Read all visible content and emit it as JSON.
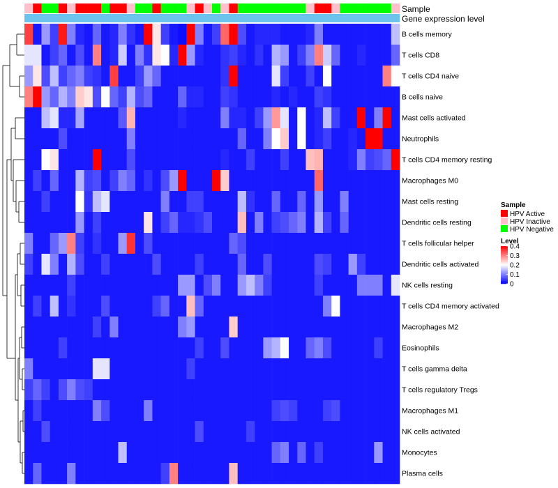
{
  "chart_data": {
    "type": "heatmap",
    "title": "",
    "xlabel": "",
    "ylabel": "",
    "row_labels": [
      "B cells memory",
      "T cells CD8",
      "T cells CD4 naive",
      "B cells naive",
      "Mast cells activated",
      "Neutrophils",
      "T cells CD4 memory resting",
      "Macrophages M0",
      "Mast cells resting",
      "Dendritic cells resting",
      "T cells follicular helper",
      "Dendritic cells activated",
      "NK cells resting",
      "T cells CD4 memory activated",
      "Macrophages M2",
      "Eosinophils",
      "T cells gamma delta",
      "T cells regulatory  Tregs",
      "Macrophages M1",
      "NK cells activated",
      "Monocytes",
      "Plasma cells"
    ],
    "annotation_tracks": [
      "Sample",
      "Gene expression level"
    ],
    "sample_groups": [
      "HPV Inactive",
      "HPV Active",
      "HPV Negative",
      "HPV Negative",
      "HPV Active",
      "HPV Inactive",
      "HPV Active",
      "HPV Active",
      "HPV Active",
      "HPV Negative",
      "HPV Active",
      "HPV Active",
      "HPV Inactive",
      "HPV Negative",
      "HPV Negative",
      "HPV Active",
      "HPV Negative",
      "HPV Negative",
      "HPV Negative",
      "HPV Inactive",
      "HPV Active",
      "HPV Inactive",
      "HPV Negative",
      "HPV Inactive",
      "HPV Active",
      "HPV Negative",
      "HPV Negative",
      "HPV Negative",
      "HPV Negative",
      "HPV Negative",
      "HPV Negative",
      "HPV Negative",
      "HPV Negative",
      "HPV Inactive",
      "HPV Active",
      "HPV Active",
      "HPV Inactive",
      "HPV Negative",
      "HPV Negative",
      "HPV Negative",
      "HPV Negative",
      "HPV Negative",
      "HPV Negative",
      "HPV Inactive"
    ],
    "values": [
      [
        0.35,
        0.02,
        0.12,
        0.05,
        0.38,
        0.1,
        0.03,
        0.02,
        0.08,
        0.02,
        0.03,
        0.1,
        0.04,
        0.02,
        0.4,
        0.22,
        0.05,
        0.02,
        0.01,
        0.44,
        0.1,
        0.02,
        0.05,
        0.32,
        0.42,
        0.06,
        0.02,
        0.03,
        0.03,
        0.03,
        0.02,
        0.02,
        0.02,
        0.03,
        0.1,
        0.02,
        0.02,
        0.02,
        0.02,
        0.02,
        0.02,
        0.02,
        0.02,
        0.15
      ],
      [
        0.18,
        0.18,
        0.02,
        0.05,
        0.08,
        0.02,
        0.06,
        0.02,
        0.3,
        0.02,
        0.03,
        0.16,
        0.02,
        0.1,
        0.04,
        0.22,
        0.2,
        0.03,
        0.42,
        0.12,
        0.03,
        0.02,
        0.02,
        0.04,
        0.05,
        0.03,
        0.02,
        0.04,
        0.02,
        0.14,
        0.12,
        0.02,
        0.05,
        0.1,
        0.3,
        0.16,
        0.08,
        0.02,
        0.02,
        0.03,
        0.02,
        0.02,
        0.02,
        0.08
      ],
      [
        0.12,
        0.22,
        0.06,
        0.15,
        0.05,
        0.08,
        0.1,
        0.05,
        0.04,
        0.02,
        0.35,
        0.02,
        0.02,
        0.05,
        0.12,
        0.08,
        0.02,
        0.02,
        0.02,
        0.02,
        0.02,
        0.02,
        0.02,
        0.04,
        0.45,
        0.02,
        0.02,
        0.02,
        0.02,
        0.18,
        0.05,
        0.02,
        0.02,
        0.05,
        0.02,
        0.2,
        0.02,
        0.02,
        0.02,
        0.02,
        0.02,
        0.02,
        0.3,
        0.2
      ],
      [
        0.3,
        0.4,
        0.12,
        0.08,
        0.14,
        0.1,
        0.24,
        0.22,
        0.06,
        0.2,
        0.08,
        0.05,
        0.14,
        0.06,
        0.08,
        0.02,
        0.02,
        0.02,
        0.08,
        0.03,
        0.03,
        0.02,
        0.02,
        0.05,
        0.04,
        0.02,
        0.02,
        0.02,
        0.02,
        0.03,
        0.02,
        0.03,
        0.02,
        0.02,
        0.05,
        0.04,
        0.02,
        0.02,
        0.02,
        0.02,
        0.02,
        0.02,
        0.02,
        0.02
      ],
      [
        0.02,
        0.02,
        0.15,
        0.18,
        0.03,
        0.03,
        0.13,
        0.02,
        0.02,
        0.02,
        0.02,
        0.07,
        0.26,
        0.02,
        0.02,
        0.02,
        0.02,
        0.02,
        0.03,
        0.02,
        0.02,
        0.02,
        0.02,
        0.1,
        0.03,
        0.03,
        0.02,
        0.05,
        0.12,
        0.28,
        0.18,
        0.02,
        0.2,
        0.02,
        0.03,
        0.15,
        0.05,
        0.02,
        0.02,
        0.5,
        0.02,
        0.1,
        0.48,
        0.02
      ],
      [
        0.02,
        0.02,
        0.02,
        0.02,
        0.06,
        0.02,
        0.02,
        0.02,
        0.02,
        0.02,
        0.02,
        0.02,
        0.1,
        0.02,
        0.02,
        0.02,
        0.02,
        0.02,
        0.02,
        0.02,
        0.02,
        0.02,
        0.02,
        0.02,
        0.02,
        0.08,
        0.02,
        0.02,
        0.1,
        0.2,
        0.24,
        0.02,
        0.2,
        0.02,
        0.03,
        0.05,
        0.02,
        0.02,
        0.03,
        0.02,
        0.42,
        0.45,
        0.02,
        0.02
      ],
      [
        0.02,
        0.02,
        0.2,
        0.22,
        0.02,
        0.02,
        0.02,
        0.02,
        0.4,
        0.02,
        0.02,
        0.02,
        0.06,
        0.02,
        0.02,
        0.02,
        0.02,
        0.02,
        0.02,
        0.02,
        0.02,
        0.02,
        0.02,
        0.03,
        0.02,
        0.02,
        0.05,
        0.02,
        0.02,
        0.02,
        0.05,
        0.02,
        0.02,
        0.25,
        0.26,
        0.02,
        0.02,
        0.02,
        0.03,
        0.1,
        0.05,
        0.06,
        0.08,
        0.42
      ],
      [
        0.02,
        0.05,
        0.02,
        0.08,
        0.02,
        0.02,
        0.14,
        0.05,
        0.06,
        0.02,
        0.05,
        0.1,
        0.08,
        0.02,
        0.04,
        0.02,
        0.06,
        0.12,
        0.42,
        0.02,
        0.02,
        0.02,
        0.4,
        0.24,
        0.02,
        0.02,
        0.02,
        0.02,
        0.02,
        0.02,
        0.02,
        0.02,
        0.02,
        0.02,
        0.32,
        0.02,
        0.02,
        0.02,
        0.02,
        0.02,
        0.02,
        0.02,
        0.02,
        0.02
      ],
      [
        0.02,
        0.02,
        0.05,
        0.02,
        0.02,
        0.02,
        0.2,
        0.04,
        0.15,
        0.18,
        0.02,
        0.02,
        0.02,
        0.02,
        0.02,
        0.02,
        0.1,
        0.02,
        0.02,
        0.05,
        0.05,
        0.02,
        0.02,
        0.02,
        0.02,
        0.15,
        0.04,
        0.02,
        0.02,
        0.08,
        0.02,
        0.02,
        0.08,
        0.02,
        0.12,
        0.02,
        0.02,
        0.1,
        0.02,
        0.02,
        0.02,
        0.02,
        0.02,
        0.02
      ],
      [
        0.02,
        0.02,
        0.02,
        0.02,
        0.02,
        0.02,
        0.12,
        0.02,
        0.05,
        0.02,
        0.02,
        0.02,
        0.02,
        0.02,
        0.22,
        0.02,
        0.05,
        0.08,
        0.03,
        0.03,
        0.04,
        0.06,
        0.02,
        0.02,
        0.02,
        0.25,
        0.02,
        0.1,
        0.02,
        0.05,
        0.06,
        0.08,
        0.1,
        0.02,
        0.14,
        0.05,
        0.02,
        0.08,
        0.02,
        0.02,
        0.02,
        0.02,
        0.02,
        0.02
      ],
      [
        0.1,
        0.02,
        0.02,
        0.08,
        0.12,
        0.3,
        0.05,
        0.02,
        0.04,
        0.02,
        0.02,
        0.12,
        0.36,
        0.02,
        0.06,
        0.02,
        0.02,
        0.02,
        0.02,
        0.02,
        0.02,
        0.02,
        0.02,
        0.02,
        0.08,
        0.06,
        0.02,
        0.02,
        0.02,
        0.02,
        0.02,
        0.02,
        0.02,
        0.02,
        0.02,
        0.02,
        0.02,
        0.02,
        0.02,
        0.02,
        0.02,
        0.02,
        0.02,
        0.02
      ],
      [
        0.05,
        0.02,
        0.18,
        0.1,
        0.02,
        0.14,
        0.06,
        0.02,
        0.02,
        0.05,
        0.02,
        0.02,
        0.02,
        0.02,
        0.02,
        0.06,
        0.02,
        0.02,
        0.02,
        0.02,
        0.05,
        0.02,
        0.02,
        0.02,
        0.02,
        0.08,
        0.02,
        0.02,
        0.06,
        0.02,
        0.02,
        0.02,
        0.02,
        0.02,
        0.06,
        0.05,
        0.02,
        0.02,
        0.12,
        0.05,
        0.02,
        0.02,
        0.02,
        0.02
      ],
      [
        0.02,
        0.02,
        0.02,
        0.02,
        0.02,
        0.05,
        0.02,
        0.02,
        0.02,
        0.02,
        0.02,
        0.02,
        0.02,
        0.02,
        0.02,
        0.02,
        0.02,
        0.02,
        0.12,
        0.12,
        0.02,
        0.06,
        0.1,
        0.02,
        0.02,
        0.12,
        0.15,
        0.1,
        0.05,
        0.02,
        0.02,
        0.02,
        0.02,
        0.02,
        0.05,
        0.02,
        0.02,
        0.02,
        0.02,
        0.1,
        0.1,
        0.1,
        0.02,
        0.18
      ],
      [
        0.02,
        0.05,
        0.02,
        0.15,
        0.02,
        0.04,
        0.02,
        0.02,
        0.02,
        0.06,
        0.02,
        0.02,
        0.02,
        0.02,
        0.02,
        0.05,
        0.08,
        0.02,
        0.02,
        0.25,
        0.08,
        0.02,
        0.02,
        0.02,
        0.02,
        0.02,
        0.02,
        0.02,
        0.02,
        0.02,
        0.02,
        0.02,
        0.02,
        0.02,
        0.02,
        0.1,
        0.2,
        0.02,
        0.02,
        0.02,
        0.02,
        0.02,
        0.02,
        0.02
      ],
      [
        0.02,
        0.02,
        0.02,
        0.02,
        0.02,
        0.02,
        0.02,
        0.02,
        0.05,
        0.02,
        0.1,
        0.02,
        0.02,
        0.02,
        0.02,
        0.02,
        0.02,
        0.02,
        0.1,
        0.12,
        0.02,
        0.02,
        0.02,
        0.02,
        0.24,
        0.02,
        0.02,
        0.02,
        0.02,
        0.02,
        0.02,
        0.02,
        0.02,
        0.02,
        0.02,
        0.02,
        0.02,
        0.02,
        0.02,
        0.02,
        0.02,
        0.02,
        0.02,
        0.02
      ],
      [
        0.02,
        0.02,
        0.02,
        0.02,
        0.05,
        0.02,
        0.02,
        0.02,
        0.02,
        0.02,
        0.02,
        0.02,
        0.02,
        0.02,
        0.02,
        0.02,
        0.02,
        0.02,
        0.02,
        0.02,
        0.05,
        0.02,
        0.02,
        0.06,
        0.02,
        0.02,
        0.02,
        0.02,
        0.12,
        0.14,
        0.2,
        0.02,
        0.02,
        0.08,
        0.1,
        0.06,
        0.02,
        0.02,
        0.02,
        0.02,
        0.02,
        0.05,
        0.02,
        0.02
      ],
      [
        0.1,
        0.02,
        0.02,
        0.02,
        0.02,
        0.02,
        0.02,
        0.02,
        0.18,
        0.18,
        0.02,
        0.02,
        0.02,
        0.02,
        0.02,
        0.02,
        0.02,
        0.02,
        0.02,
        0.05,
        0.02,
        0.02,
        0.02,
        0.02,
        0.02,
        0.02,
        0.02,
        0.02,
        0.02,
        0.02,
        0.02,
        0.02,
        0.02,
        0.02,
        0.02,
        0.02,
        0.02,
        0.02,
        0.02,
        0.02,
        0.02,
        0.02,
        0.02,
        0.02
      ],
      [
        0.05,
        0.08,
        0.05,
        0.02,
        0.06,
        0.1,
        0.06,
        0.05,
        0.02,
        0.02,
        0.02,
        0.02,
        0.02,
        0.02,
        0.02,
        0.02,
        0.02,
        0.02,
        0.02,
        0.02,
        0.02,
        0.02,
        0.02,
        0.02,
        0.02,
        0.02,
        0.02,
        0.02,
        0.02,
        0.02,
        0.02,
        0.02,
        0.02,
        0.02,
        0.02,
        0.02,
        0.02,
        0.02,
        0.02,
        0.02,
        0.02,
        0.02,
        0.02,
        0.02
      ],
      [
        0.02,
        0.05,
        0.02,
        0.02,
        0.02,
        0.02,
        0.02,
        0.02,
        0.1,
        0.06,
        0.02,
        0.02,
        0.02,
        0.02,
        0.1,
        0.02,
        0.02,
        0.02,
        0.02,
        0.02,
        0.02,
        0.02,
        0.02,
        0.02,
        0.02,
        0.02,
        0.02,
        0.02,
        0.02,
        0.05,
        0.06,
        0.05,
        0.02,
        0.02,
        0.02,
        0.05,
        0.06,
        0.02,
        0.02,
        0.02,
        0.02,
        0.02,
        0.02,
        0.02
      ],
      [
        0.02,
        0.02,
        0.06,
        0.02,
        0.02,
        0.02,
        0.02,
        0.02,
        0.02,
        0.02,
        0.02,
        0.02,
        0.02,
        0.02,
        0.02,
        0.02,
        0.02,
        0.02,
        0.02,
        0.02,
        0.06,
        0.02,
        0.02,
        0.02,
        0.02,
        0.02,
        0.05,
        0.02,
        0.02,
        0.02,
        0.02,
        0.02,
        0.02,
        0.02,
        0.02,
        0.02,
        0.02,
        0.02,
        0.02,
        0.02,
        0.02,
        0.02,
        0.02,
        0.02
      ],
      [
        0.02,
        0.02,
        0.02,
        0.02,
        0.02,
        0.02,
        0.02,
        0.02,
        0.02,
        0.02,
        0.02,
        0.15,
        0.02,
        0.02,
        0.02,
        0.02,
        0.02,
        0.02,
        0.02,
        0.02,
        0.02,
        0.02,
        0.02,
        0.02,
        0.02,
        0.02,
        0.02,
        0.02,
        0.02,
        0.08,
        0.1,
        0.02,
        0.08,
        0.02,
        0.05,
        0.02,
        0.02,
        0.02,
        0.02,
        0.02,
        0.02,
        0.12,
        0.02,
        0.02
      ],
      [
        0.02,
        0.08,
        0.02,
        0.02,
        0.02,
        0.1,
        0.02,
        0.02,
        0.02,
        0.02,
        0.02,
        0.02,
        0.02,
        0.02,
        0.02,
        0.02,
        0.05,
        0.3,
        0.02,
        0.02,
        0.02,
        0.02,
        0.02,
        0.02,
        0.25,
        0.02,
        0.02,
        0.02,
        0.02,
        0.02,
        0.02,
        0.02,
        0.02,
        0.02,
        0.02,
        0.02,
        0.02,
        0.02,
        0.02,
        0.02,
        0.02,
        0.02,
        0.02,
        0.02
      ]
    ],
    "color_scale": {
      "min": 0,
      "max": 0.4,
      "low": "#0000ff",
      "mid": "#ffffff",
      "high": "#ff0000",
      "mid_value": 0.2
    },
    "gene_expression_color": "#6cc3ee",
    "legend": {
      "placement": "right",
      "sample": {
        "title": "Sample",
        "items": [
          {
            "label": "HPV Active",
            "color": "#ff0000"
          },
          {
            "label": "HPV Inactive",
            "color": "#ffc0cb"
          },
          {
            "label": "HPV Negative",
            "color": "#00ff00"
          }
        ]
      },
      "level": {
        "title": "Level",
        "ticks": [
          "0.4",
          "0.3",
          "0.2",
          "0.1",
          "0"
        ],
        "tick_values": [
          0.4,
          0.3,
          0.2,
          0.1,
          0
        ]
      }
    },
    "dendrogram": "rows"
  }
}
